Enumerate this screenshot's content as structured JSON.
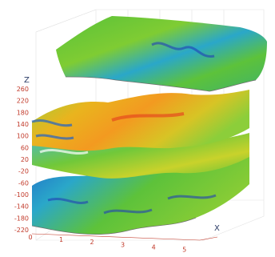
{
  "chart_data": {
    "type": "surface-3d",
    "title": "",
    "z_axis": {
      "label": "Z",
      "ticks": [
        "260",
        "220",
        "180",
        "140",
        "100",
        "60",
        "20",
        "-20",
        "-60",
        "-100",
        "-140",
        "-180",
        "-220"
      ],
      "range": [
        -220,
        260
      ]
    },
    "x_axis": {
      "label": "X",
      "ticks": [
        "0",
        "1",
        "2",
        "3",
        "4",
        "5"
      ],
      "range": [
        0,
        5.5
      ]
    },
    "surfaces": [
      {
        "level": "top",
        "approx_z": 230
      },
      {
        "level": "middle",
        "approx_z": 90
      },
      {
        "level": "lower-middle",
        "approx_z": -20
      },
      {
        "level": "bottom",
        "approx_z": -140
      }
    ],
    "colors": {
      "high": "#d9301c",
      "mid_high": "#f5c016",
      "mid": "#6cc636",
      "low": "#22a0c8",
      "lowest": "#1f3fb5"
    },
    "grid": true,
    "legend": "none"
  }
}
